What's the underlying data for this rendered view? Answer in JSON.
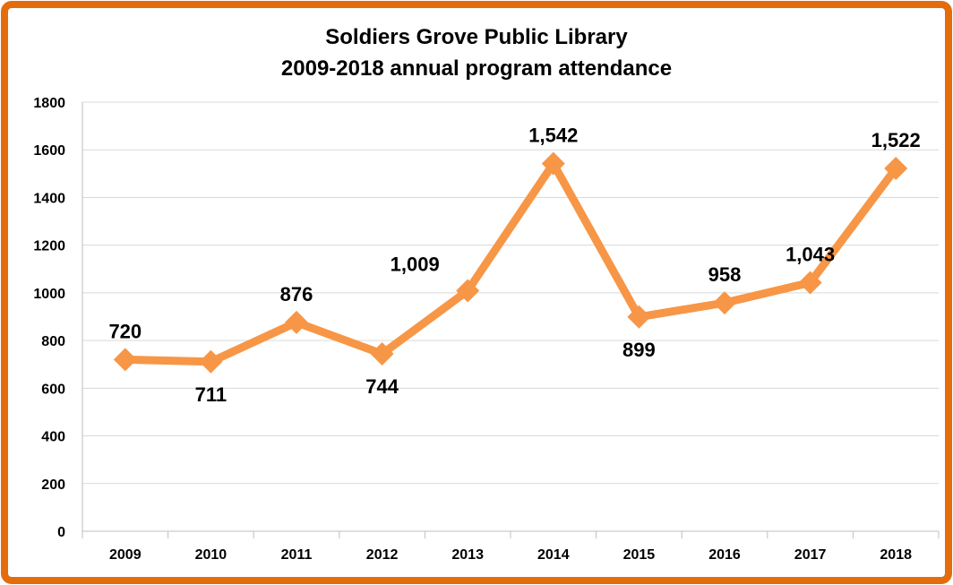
{
  "chart_data": {
    "type": "line",
    "title_lines": [
      "Soldiers Grove Public Library",
      "2009-2018 annual program attendance"
    ],
    "categories": [
      "2009",
      "2010",
      "2011",
      "2012",
      "2013",
      "2014",
      "2015",
      "2016",
      "2017",
      "2018"
    ],
    "series": [
      {
        "values": [
          720,
          711,
          876,
          744,
          1009,
          1542,
          899,
          958,
          1043,
          1522
        ],
        "data_labels": [
          "720",
          "711",
          "876",
          "744",
          "1,009",
          "1,542",
          "899",
          "958",
          "1,043",
          "1,522"
        ],
        "color": "#F79646",
        "marker": "diamond"
      }
    ],
    "ylim": [
      0,
      1800
    ],
    "yticks": [
      "0",
      "200",
      "400",
      "600",
      "800",
      "1000",
      "1200",
      "1400",
      "1600",
      "1800"
    ],
    "grid": true,
    "legend": "none"
  },
  "colors": {
    "frame_border": "#E46C0A",
    "series_line": "#F79646",
    "gridline": "#D9D9D9",
    "axis": "#BFBFBF"
  }
}
